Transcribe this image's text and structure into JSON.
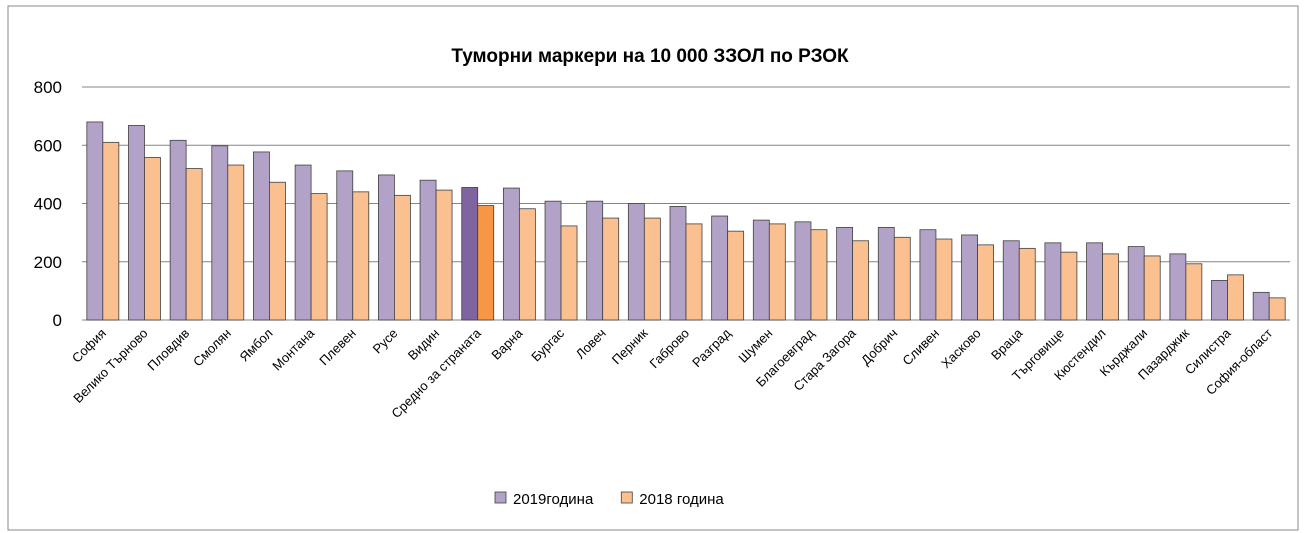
{
  "chart_data": {
    "type": "bar",
    "title": "Туморни маркери на 10 000 ЗЗОЛ по РЗОК",
    "categories": [
      "София",
      "Велико Търново",
      "Пловдив",
      "Смолян",
      "Ямбол",
      "Монтана",
      "Плевен",
      "Русе",
      "Видин",
      "Средно за страната",
      "Варна",
      "Бургас",
      "Ловеч",
      "Перник",
      "Габрово",
      "Разград",
      "Шумен",
      "Благоевград",
      "Стара Загора",
      "Добрич",
      "Сливен",
      "Хасково",
      "Враца",
      "Търговище",
      "Кюстендил",
      "Кърджали",
      "Пазарджик",
      "Силистра",
      "София-област"
    ],
    "series": [
      {
        "name": "2019година",
        "color": "#b3a2c7",
        "colors": [
          "#b3a2c7",
          "#b3a2c7",
          "#b3a2c7",
          "#b3a2c7",
          "#b3a2c7",
          "#b3a2c7",
          "#b3a2c7",
          "#b3a2c7",
          "#b3a2c7",
          "#7f64a0",
          "#b3a2c7",
          "#b3a2c7",
          "#b3a2c7",
          "#b3a2c7",
          "#b3a2c7",
          "#b3a2c7",
          "#b3a2c7",
          "#b3a2c7",
          "#b3a2c7",
          "#b3a2c7",
          "#b3a2c7",
          "#b3a2c7",
          "#b3a2c7",
          "#b3a2c7",
          "#b3a2c7",
          "#b3a2c7",
          "#b3a2c7",
          "#b3a2c7",
          "#b3a2c7"
        ],
        "values": [
          680,
          668,
          617,
          598,
          577,
          532,
          512,
          498,
          480,
          455,
          453,
          408,
          408,
          400,
          390,
          357,
          343,
          337,
          318,
          318,
          310,
          292,
          272,
          265,
          265,
          252,
          227,
          136,
          95
        ]
      },
      {
        "name": "2018 година",
        "color": "#fac090",
        "colors": [
          "#fac090",
          "#fac090",
          "#fac090",
          "#fac090",
          "#fac090",
          "#fac090",
          "#fac090",
          "#fac090",
          "#fac090",
          "#f79646",
          "#fac090",
          "#fac090",
          "#fac090",
          "#fac090",
          "#fac090",
          "#fac090",
          "#fac090",
          "#fac090",
          "#fac090",
          "#fac090",
          "#fac090",
          "#fac090",
          "#fac090",
          "#fac090",
          "#fac090",
          "#fac090",
          "#fac090",
          "#fac090",
          "#fac090"
        ],
        "values": [
          610,
          558,
          520,
          532,
          473,
          434,
          440,
          428,
          446,
          393,
          382,
          323,
          350,
          350,
          330,
          305,
          330,
          310,
          272,
          284,
          278,
          258,
          246,
          233,
          227,
          220,
          193,
          155,
          76
        ]
      }
    ],
    "ylim": [
      0,
      800
    ],
    "yticks": [
      0,
      200,
      400,
      600,
      800
    ],
    "grid": true,
    "legend": "bottom"
  }
}
